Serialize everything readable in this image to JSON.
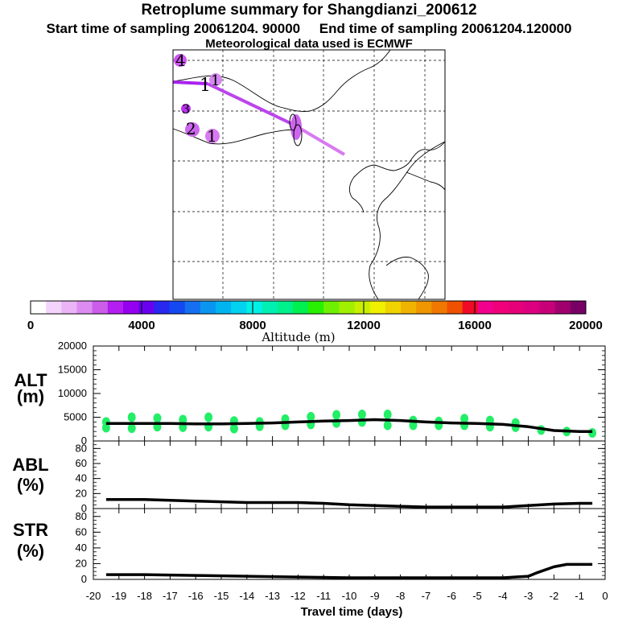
{
  "chart_data": {
    "type": "line",
    "title": "Retroplume summary for Shangdianzi_200612",
    "subtitle_start_label": "Start time of sampling 20061204. 90000",
    "subtitle_end_label": "End time of sampling 20061204.120000",
    "subtitle_met": "Meteorological data used is ECMWF",
    "map": {
      "plume_labels": [
        "1",
        "1",
        "1",
        "2",
        "3",
        "4"
      ],
      "colorbar_label": "Altitude (m)",
      "colorbar_ticks": [
        "0",
        "4000",
        "8000",
        "12000",
        "16000",
        "20000"
      ],
      "colorbar_colors": [
        "#ffffff",
        "#f4d4fa",
        "#eab4f6",
        "#dc8cf0",
        "#cc5cea",
        "#b41ef0",
        "#9600f0",
        "#6a00f0",
        "#2828f0",
        "#1448f0",
        "#1470f0",
        "#0a96f0",
        "#00b4f0",
        "#00d2f0",
        "#00f0e6",
        "#00f0b4",
        "#00f08c",
        "#00f050",
        "#28f000",
        "#6ef000",
        "#a0f000",
        "#c8f000",
        "#f0f000",
        "#f0d200",
        "#f0b400",
        "#f09600",
        "#f07800",
        "#f05000",
        "#f00a28",
        "#f0008c",
        "#f0007a",
        "#e6007a",
        "#dc0080",
        "#c80078",
        "#a0006e",
        "#780064"
      ]
    },
    "x_label": "Travel time (days)",
    "x_ticks": [
      "-20",
      "-19",
      "-18",
      "-17",
      "-16",
      "-15",
      "-14",
      "-13",
      "-12",
      "-11",
      "-10",
      "-9",
      "-8",
      "-7",
      "-6",
      "-5",
      "-4",
      "-3",
      "-2",
      "-1",
      "0"
    ],
    "xlim": [
      -20,
      0
    ],
    "panels": [
      {
        "name": "ALT",
        "ylabel_line1": "ALT",
        "ylabel_line2": "(m)",
        "ylim": [
          0,
          20000
        ],
        "yticks": [
          "0",
          "5000",
          "10000",
          "15000",
          "20000"
        ],
        "line": {
          "x": [
            -19.5,
            -19,
            -18,
            -17,
            -16,
            -15,
            -14,
            -13,
            -12,
            -11,
            -10,
            -9,
            -8,
            -7,
            -6,
            -5,
            -4,
            -3,
            -2,
            -1,
            -0.5
          ],
          "y": [
            3700,
            3700,
            3700,
            3700,
            3600,
            3600,
            3700,
            3800,
            4000,
            4200,
            4300,
            4500,
            4300,
            4000,
            3800,
            3700,
            3500,
            3000,
            2200,
            2000,
            2000
          ]
        },
        "scatter": {
          "x": [
            -19.5,
            -19.5,
            -18.5,
            -18.5,
            -17.5,
            -17.5,
            -16.5,
            -16.5,
            -15.5,
            -15.5,
            -14.5,
            -14.5,
            -13.5,
            -13.5,
            -12.5,
            -12.5,
            -11.5,
            -11.5,
            -10.5,
            -10.5,
            -9.5,
            -9.5,
            -8.5,
            -8.5,
            -7.5,
            -7.5,
            -6.5,
            -6.5,
            -5.5,
            -5.5,
            -4.5,
            -4.5,
            -3.5,
            -3.5,
            -2.5,
            -1.5,
            -0.5
          ],
          "y": [
            2800,
            4000,
            2700,
            5000,
            3000,
            4800,
            2900,
            4500,
            3000,
            5000,
            2600,
            4200,
            3100,
            4000,
            3300,
            4600,
            3500,
            5100,
            3800,
            5500,
            4000,
            5600,
            3300,
            5600,
            3300,
            4300,
            3300,
            4100,
            3300,
            4700,
            3000,
            4300,
            2900,
            3800,
            2300,
            2000,
            1700
          ]
        },
        "tick_step": 1000
      },
      {
        "name": "ABL",
        "ylabel_line1": "ABL",
        "ylabel_line2": "(%)",
        "ylim": [
          0,
          90
        ],
        "yticks": [
          "0",
          "20",
          "40",
          "60",
          "80"
        ],
        "line": {
          "x": [
            -19.5,
            -18,
            -16,
            -14,
            -12,
            -11,
            -10,
            -8,
            -7,
            -6,
            -5,
            -4,
            -3,
            -2,
            -1,
            -0.5
          ],
          "y": [
            12,
            12,
            10,
            8,
            8,
            7,
            5,
            3,
            2,
            2,
            2,
            2,
            4,
            6,
            7,
            7
          ]
        },
        "tick_step": 5
      },
      {
        "name": "STR",
        "ylabel_line1": "STR",
        "ylabel_line2": "(%)",
        "ylim": [
          0,
          90
        ],
        "yticks": [
          "0",
          "20",
          "40",
          "60",
          "80"
        ],
        "line": {
          "x": [
            -19.5,
            -18,
            -16,
            -14,
            -12,
            -10,
            -8,
            -6,
            -4,
            -3,
            -2.7,
            -2,
            -1.5,
            -1,
            -0.5
          ],
          "y": [
            6,
            6,
            5,
            4,
            3,
            2,
            2,
            2,
            2,
            4,
            8,
            16,
            19,
            19,
            19
          ]
        },
        "tick_step": 5
      }
    ],
    "colors": {
      "line": "#000000",
      "scatter": "#22ee66",
      "plume_dark": "#aa22ee",
      "plume_light": "#d77af0"
    }
  }
}
